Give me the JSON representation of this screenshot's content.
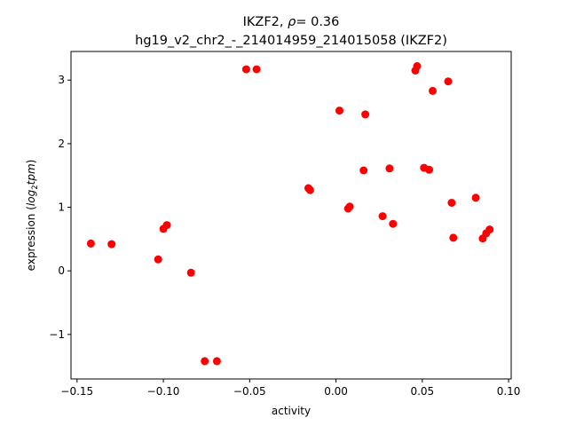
{
  "chart_data": {
    "type": "scatter",
    "title_prefix": "IKZF2, ",
    "title_rho_symbol": "ρ",
    "title_rho_value": "= 0.36",
    "subtitle": "hg19_v2_chr2_-_214014959_214015058 (IKZF2)",
    "xlabel": "activity",
    "ylabel_prefix": "expression (",
    "ylabel_math": "log",
    "ylabel_sub": "2",
    "ylabel_math2": "tpm",
    "ylabel_suffix": ")",
    "xlim": [
      -0.1535,
      0.1015
    ],
    "ylim": [
      -1.7,
      3.45
    ],
    "xticks": [
      -0.15,
      -0.1,
      -0.05,
      0.0,
      0.05,
      0.1
    ],
    "xtick_labels": [
      "−0.15",
      "−0.10",
      "−0.05",
      "0.00",
      "0.05",
      "0.10"
    ],
    "yticks": [
      -1,
      0,
      1,
      2,
      3
    ],
    "ytick_labels": [
      "−1",
      "0",
      "1",
      "2",
      "3"
    ],
    "marker_color": "#ff0000",
    "grid": false,
    "points": [
      {
        "x": -0.142,
        "y": 0.43
      },
      {
        "x": -0.13,
        "y": 0.42
      },
      {
        "x": -0.103,
        "y": 0.18
      },
      {
        "x": -0.1,
        "y": 0.66
      },
      {
        "x": -0.098,
        "y": 0.72
      },
      {
        "x": -0.084,
        "y": -0.03
      },
      {
        "x": -0.076,
        "y": -1.42
      },
      {
        "x": -0.069,
        "y": -1.42
      },
      {
        "x": -0.052,
        "y": 3.17
      },
      {
        "x": -0.046,
        "y": 3.17
      },
      {
        "x": -0.016,
        "y": 1.3
      },
      {
        "x": -0.015,
        "y": 1.27
      },
      {
        "x": 0.002,
        "y": 2.52
      },
      {
        "x": 0.007,
        "y": 0.98
      },
      {
        "x": 0.008,
        "y": 1.01
      },
      {
        "x": 0.016,
        "y": 1.58
      },
      {
        "x": 0.017,
        "y": 2.46
      },
      {
        "x": 0.027,
        "y": 0.86
      },
      {
        "x": 0.031,
        "y": 1.61
      },
      {
        "x": 0.033,
        "y": 0.74
      },
      {
        "x": 0.046,
        "y": 3.15
      },
      {
        "x": 0.047,
        "y": 3.22
      },
      {
        "x": 0.051,
        "y": 1.62
      },
      {
        "x": 0.054,
        "y": 1.59
      },
      {
        "x": 0.056,
        "y": 2.83
      },
      {
        "x": 0.065,
        "y": 2.98
      },
      {
        "x": 0.067,
        "y": 1.07
      },
      {
        "x": 0.068,
        "y": 0.52
      },
      {
        "x": 0.081,
        "y": 1.15
      },
      {
        "x": 0.085,
        "y": 0.51
      },
      {
        "x": 0.087,
        "y": 0.59
      },
      {
        "x": 0.089,
        "y": 0.65
      }
    ]
  }
}
